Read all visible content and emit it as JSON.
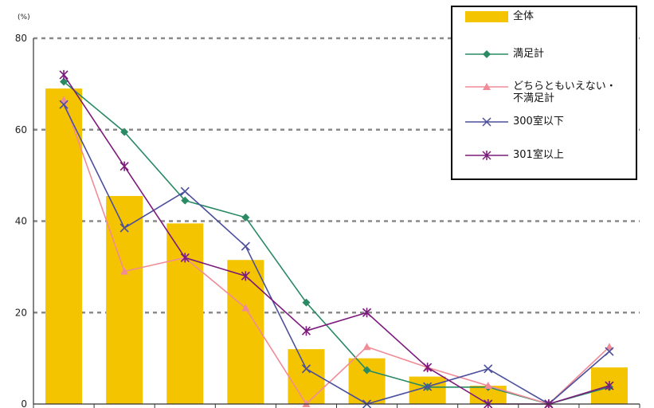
{
  "chart_data": {
    "type": "bar",
    "unit_label": "(%)",
    "ylim": [
      0,
      80
    ],
    "yticks": [
      0,
      20,
      40,
      60,
      80
    ],
    "grid": true,
    "legend_position": "top-right",
    "categories_count": 10,
    "series": [
      {
        "name": "全体",
        "kind": "bar",
        "color": "#f5c400",
        "values": [
          69,
          45.5,
          39.5,
          31.5,
          12,
          10,
          6,
          4,
          0,
          8
        ]
      },
      {
        "name": "満足計",
        "kind": "line",
        "marker": "diamond",
        "color": "#2a8a64",
        "values": [
          70.5,
          59.5,
          44.5,
          40.8,
          22.2,
          7.4,
          3.7,
          3.7,
          0,
          3.7
        ]
      },
      {
        "name": "どちらともいえない・\n不満足計",
        "kind": "line",
        "marker": "triangle",
        "color": "#f08c98",
        "values": [
          66.5,
          29,
          32,
          21,
          0,
          12.5,
          8,
          4,
          0,
          12.5
        ]
      },
      {
        "name": "300室以下",
        "kind": "line",
        "marker": "x",
        "color": "#4b4f9c",
        "values": [
          65.5,
          38.5,
          46.5,
          34.5,
          7.7,
          0,
          3.8,
          7.7,
          0,
          11.5
        ]
      },
      {
        "name": "301室以上",
        "kind": "line",
        "marker": "asterisk",
        "color": "#7a1b7c",
        "values": [
          72,
          52,
          32,
          28,
          16,
          20,
          8,
          0,
          0,
          4
        ]
      }
    ]
  }
}
